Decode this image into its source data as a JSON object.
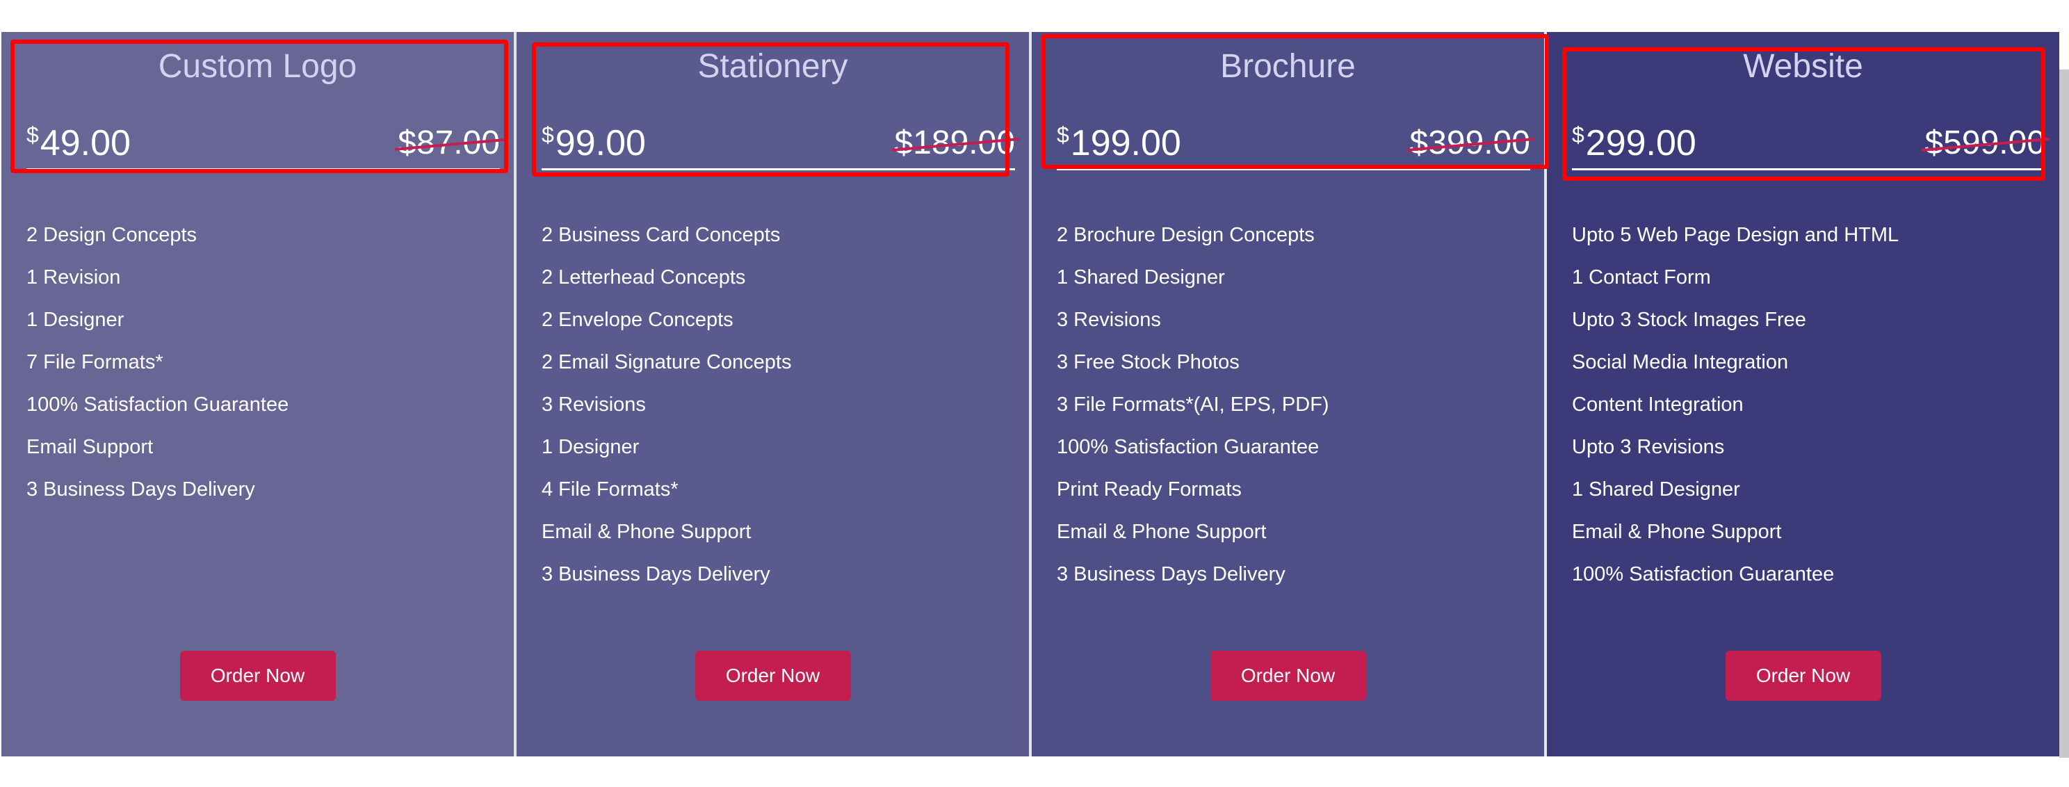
{
  "colors": {
    "card_backgrounds": [
      "#676695",
      "#5a5a8f",
      "#4f4f87",
      "#3c3a79"
    ],
    "button": "#c41d50",
    "strike": "#c41e51",
    "highlight": "#ff0000",
    "title": "#d3d3f0"
  },
  "currency_symbol": "$",
  "plans": [
    {
      "title": "Custom Logo",
      "price": "49.00",
      "old_price": "$87.00",
      "button": "Order Now",
      "features": [
        "2 Design Concepts",
        "1 Revision",
        "1 Designer",
        "7 File Formats*",
        "100% Satisfaction Guarantee",
        "Email Support",
        "3 Business Days Delivery"
      ]
    },
    {
      "title": "Stationery",
      "price": "99.00",
      "old_price": "$189.00",
      "button": "Order Now",
      "features": [
        "2 Business Card Concepts",
        "2 Letterhead Concepts",
        "2 Envelope Concepts",
        "2 Email Signature Concepts",
        "3 Revisions",
        "1 Designer",
        "4 File Formats*",
        "Email & Phone Support",
        "3 Business Days Delivery"
      ]
    },
    {
      "title": "Brochure",
      "price": "199.00",
      "old_price": "$399.00",
      "button": "Order Now",
      "features": [
        "2 Brochure Design Concepts",
        "1 Shared Designer",
        "3 Revisions",
        "3 Free Stock Photos",
        "3 File Formats*(AI, EPS, PDF)",
        "100% Satisfaction Guarantee",
        "Print Ready Formats",
        "Email & Phone Support",
        "3 Business Days Delivery"
      ]
    },
    {
      "title": "Website",
      "price": "299.00",
      "old_price": "$599.00",
      "button": "Order Now",
      "features": [
        "Upto 5 Web Page Design and HTML",
        "1 Contact Form",
        "Upto 3 Stock Images Free",
        "Social Media Integration",
        "Content Integration",
        "Upto 3 Revisions",
        "1 Shared Designer",
        "Email & Phone Support",
        "100% Satisfaction Guarantee"
      ]
    }
  ]
}
